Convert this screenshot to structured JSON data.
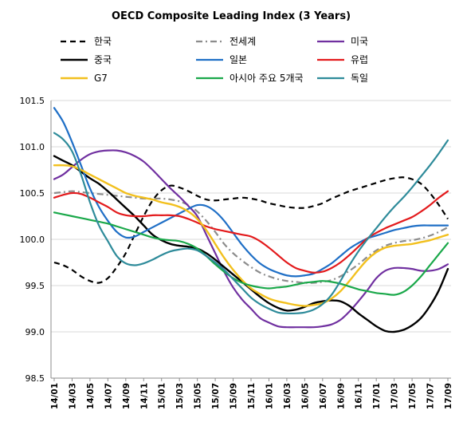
{
  "chart_data": {
    "type": "line",
    "title": "OECD Composite Leading Index (3 Years)",
    "xlabel": "",
    "ylabel": "",
    "ylim": [
      98.5,
      101.5
    ],
    "yticks": [
      "98.5",
      "99.0",
      "99.5",
      "100.0",
      "100.5",
      "101.0",
      "101.5"
    ],
    "categories": [
      "14/01",
      "14/02",
      "14/03",
      "14/04",
      "14/05",
      "14/06",
      "14/07",
      "14/08",
      "14/09",
      "14/10",
      "14/11",
      "14/12",
      "15/01",
      "15/02",
      "15/03",
      "15/04",
      "15/05",
      "15/06",
      "15/07",
      "15/08",
      "15/09",
      "15/10",
      "15/11",
      "15/12",
      "16/01",
      "16/02",
      "16/03",
      "16/04",
      "16/05",
      "16/06",
      "16/07",
      "16/08",
      "16/09",
      "16/10",
      "16/11",
      "16/12",
      "17/01",
      "17/02",
      "17/03",
      "17/04",
      "17/05",
      "17/06",
      "17/07",
      "17/08",
      "17/09"
    ],
    "xtick_labels": [
      "14/01",
      "14/03",
      "14/05",
      "14/07",
      "14/09",
      "14/11",
      "15/01",
      "15/03",
      "15/05",
      "15/07",
      "15/09",
      "15/11",
      "16/01",
      "16/03",
      "16/05",
      "16/07",
      "16/09",
      "16/11",
      "17/01",
      "17/03",
      "17/05",
      "17/07",
      "17/09"
    ],
    "grid": "horizontal",
    "legend_position": "top",
    "series": [
      {
        "name": "한국",
        "color": "#000000",
        "dash": "dash",
        "width": 2.2,
        "values": [
          99.75,
          99.72,
          99.67,
          99.6,
          99.55,
          99.53,
          99.58,
          99.7,
          99.85,
          100.05,
          100.25,
          100.42,
          100.53,
          100.58,
          100.56,
          100.52,
          100.47,
          100.43,
          100.42,
          100.43,
          100.44,
          100.45,
          100.44,
          100.42,
          100.39,
          100.37,
          100.35,
          100.34,
          100.34,
          100.36,
          100.39,
          100.44,
          100.48,
          100.52,
          100.55,
          100.58,
          100.61,
          100.64,
          100.66,
          100.67,
          100.65,
          100.6,
          100.5,
          100.37,
          100.22
        ]
      },
      {
        "name": "전세계",
        "color": "#8c8c8c",
        "dash": "dashdot",
        "width": 2.2,
        "values": [
          100.5,
          100.51,
          100.52,
          100.51,
          100.5,
          100.49,
          100.48,
          100.47,
          100.46,
          100.45,
          100.44,
          100.44,
          100.44,
          100.43,
          100.41,
          100.37,
          100.3,
          100.2,
          100.08,
          99.95,
          99.85,
          99.77,
          99.7,
          99.64,
          99.6,
          99.57,
          99.55,
          99.54,
          99.53,
          99.53,
          99.54,
          99.56,
          99.6,
          99.66,
          99.73,
          99.81,
          99.88,
          99.93,
          99.96,
          99.98,
          99.99,
          100.01,
          100.04,
          100.08,
          100.13
        ]
      },
      {
        "name": "미국",
        "color": "#7030a0",
        "dash": "solid",
        "width": 2.2,
        "values": [
          100.65,
          100.7,
          100.78,
          100.86,
          100.92,
          100.95,
          100.96,
          100.96,
          100.94,
          100.9,
          100.84,
          100.75,
          100.65,
          100.55,
          100.46,
          100.36,
          100.25,
          100.05,
          99.85,
          99.65,
          99.48,
          99.35,
          99.25,
          99.15,
          99.1,
          99.06,
          99.05,
          99.05,
          99.05,
          99.05,
          99.06,
          99.08,
          99.13,
          99.22,
          99.33,
          99.45,
          99.58,
          99.66,
          99.69,
          99.69,
          99.68,
          99.66,
          99.66,
          99.68,
          99.73
        ]
      },
      {
        "name": "중국",
        "color": "#000000",
        "dash": "solid",
        "width": 2.4,
        "values": [
          100.9,
          100.85,
          100.8,
          100.73,
          100.66,
          100.6,
          100.52,
          100.43,
          100.34,
          100.25,
          100.15,
          100.05,
          99.99,
          99.95,
          99.93,
          99.92,
          99.9,
          99.85,
          99.78,
          99.7,
          99.62,
          99.54,
          99.46,
          99.38,
          99.31,
          99.26,
          99.23,
          99.24,
          99.27,
          99.31,
          99.33,
          99.34,
          99.33,
          99.28,
          99.2,
          99.13,
          99.06,
          99.01,
          99.0,
          99.02,
          99.07,
          99.15,
          99.28,
          99.45,
          99.68
        ]
      },
      {
        "name": "일본",
        "color": "#1f6fc6",
        "dash": "solid",
        "width": 2.2,
        "values": [
          101.42,
          101.27,
          101.05,
          100.8,
          100.55,
          100.35,
          100.2,
          100.08,
          100.02,
          100.03,
          100.08,
          100.13,
          100.18,
          100.23,
          100.28,
          100.33,
          100.37,
          100.36,
          100.3,
          100.2,
          100.07,
          99.94,
          99.83,
          99.74,
          99.68,
          99.64,
          99.61,
          99.6,
          99.61,
          99.63,
          99.68,
          99.74,
          99.82,
          99.9,
          99.96,
          100.01,
          100.04,
          100.07,
          100.1,
          100.12,
          100.14,
          100.15,
          100.15,
          100.15,
          100.15
        ]
      },
      {
        "name": "유럽",
        "color": "#e31a1c",
        "dash": "solid",
        "width": 2.2,
        "values": [
          100.45,
          100.48,
          100.5,
          100.49,
          100.45,
          100.4,
          100.35,
          100.29,
          100.26,
          100.25,
          100.25,
          100.26,
          100.26,
          100.26,
          100.25,
          100.22,
          100.18,
          100.14,
          100.11,
          100.09,
          100.07,
          100.05,
          100.03,
          99.98,
          99.91,
          99.83,
          99.75,
          99.69,
          99.66,
          99.64,
          99.65,
          99.69,
          99.75,
          99.83,
          99.92,
          100.01,
          100.07,
          100.12,
          100.16,
          100.2,
          100.24,
          100.3,
          100.37,
          100.45,
          100.52
        ]
      },
      {
        "name": "G7",
        "color": "#f2c01e",
        "dash": "solid",
        "width": 2.4,
        "values": [
          100.8,
          100.8,
          100.79,
          100.75,
          100.7,
          100.65,
          100.6,
          100.55,
          100.5,
          100.47,
          100.45,
          100.43,
          100.4,
          100.38,
          100.35,
          100.3,
          100.22,
          100.1,
          99.95,
          99.8,
          99.67,
          99.56,
          99.47,
          99.41,
          99.36,
          99.33,
          99.31,
          99.29,
          99.28,
          99.29,
          99.31,
          99.36,
          99.44,
          99.55,
          99.67,
          99.78,
          99.86,
          99.91,
          99.93,
          99.94,
          99.95,
          99.97,
          99.99,
          100.02,
          100.05
        ]
      },
      {
        "name": "아시아 주요 5개국",
        "color": "#1aa84a",
        "dash": "solid",
        "width": 2.2,
        "values": [
          100.29,
          100.27,
          100.25,
          100.23,
          100.21,
          100.19,
          100.17,
          100.14,
          100.11,
          100.08,
          100.05,
          100.02,
          100.0,
          99.99,
          99.98,
          99.95,
          99.9,
          99.82,
          99.73,
          99.65,
          99.58,
          99.53,
          99.5,
          99.48,
          99.47,
          99.48,
          99.49,
          99.51,
          99.53,
          99.54,
          99.55,
          99.54,
          99.52,
          99.49,
          99.46,
          99.44,
          99.42,
          99.41,
          99.4,
          99.43,
          99.5,
          99.6,
          99.72,
          99.84,
          99.96
        ]
      },
      {
        "name": "독일",
        "color": "#2e8b9a",
        "dash": "solid",
        "width": 2.2,
        "values": [
          101.15,
          101.08,
          100.95,
          100.7,
          100.4,
          100.15,
          99.98,
          99.82,
          99.74,
          99.72,
          99.74,
          99.78,
          99.83,
          99.87,
          99.89,
          99.9,
          99.88,
          99.82,
          99.75,
          99.67,
          99.57,
          99.47,
          99.37,
          99.3,
          99.25,
          99.21,
          99.2,
          99.2,
          99.21,
          99.24,
          99.3,
          99.4,
          99.55,
          99.72,
          99.87,
          100.0,
          100.12,
          100.24,
          100.35,
          100.45,
          100.56,
          100.68,
          100.8,
          100.93,
          101.07
        ]
      }
    ]
  }
}
